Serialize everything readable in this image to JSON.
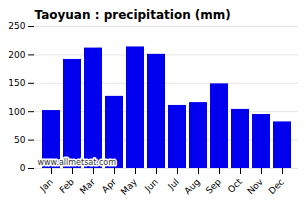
{
  "chart_data": {
    "type": "bar",
    "title": "Taoyuan : precipitation (mm)",
    "categories": [
      "Jan",
      "Feb",
      "Mar",
      "Apr",
      "May",
      "Jun",
      "Jul",
      "Aug",
      "Sep",
      "Oct",
      "Nov",
      "Dec"
    ],
    "values": [
      102,
      192,
      212,
      127,
      214,
      201,
      111,
      116,
      149,
      104,
      95,
      82
    ],
    "color": "#0000ee",
    "ylim": [
      0,
      250
    ],
    "yticks": [
      0,
      50,
      100,
      150,
      200,
      250
    ],
    "grid": true,
    "annotation": "www.allmetsat.com"
  }
}
